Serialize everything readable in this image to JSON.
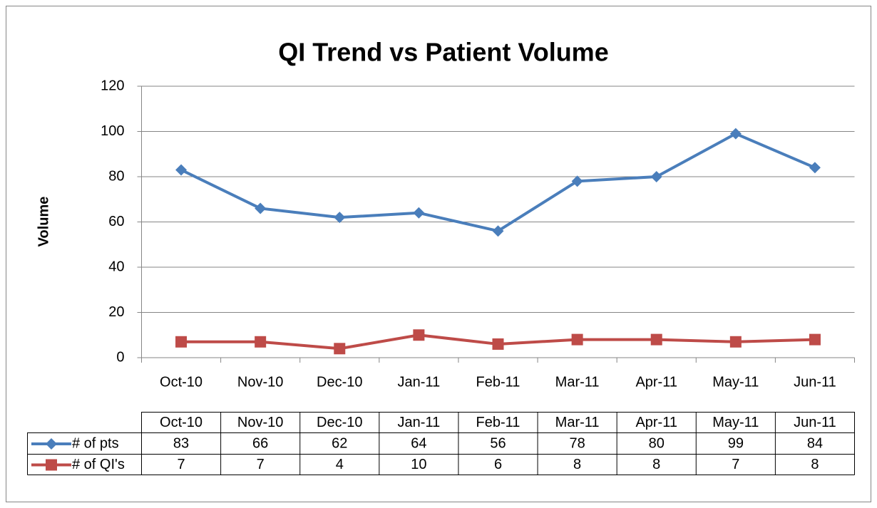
{
  "chart_data": {
    "type": "line",
    "title": "QI Trend vs Patient Volume",
    "y_label": "Volume",
    "categories": [
      "Oct-10",
      "Nov-10",
      "Dec-10",
      "Jan-11",
      "Feb-11",
      "Mar-11",
      "Apr-11",
      "May-11",
      "Jun-11"
    ],
    "series": [
      {
        "name": "# of pts",
        "color": "#4a7ebb",
        "marker": "diamond",
        "values": [
          83,
          66,
          62,
          64,
          56,
          78,
          80,
          99,
          84
        ]
      },
      {
        "name": "# of QI's",
        "color": "#be4b48",
        "marker": "square",
        "values": [
          7,
          7,
          4,
          10,
          6,
          8,
          8,
          7,
          8
        ]
      }
    ],
    "ylim": [
      0,
      120
    ],
    "yticks": [
      0,
      20,
      40,
      60,
      80,
      100,
      120
    ],
    "grid": true,
    "data_table": true
  }
}
